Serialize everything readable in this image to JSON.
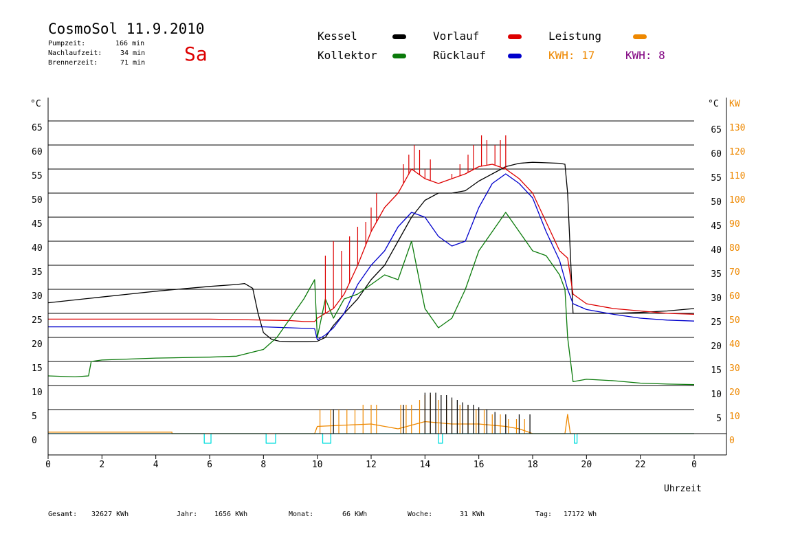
{
  "header": {
    "title": "CosmoSol 11.9.2010",
    "day": "Sa",
    "stats": [
      {
        "label": "Pumpzeit:",
        "value": "166 min"
      },
      {
        "label": "Nachlaufzeit:",
        "value": "34 min"
      },
      {
        "label": "Brennerzeit:",
        "value": "71 min"
      }
    ]
  },
  "legend": {
    "kessel": "Kessel",
    "kollektor": "Kollektor",
    "vorlauf": "Vorlauf",
    "ruecklauf": "Rücklauf",
    "leistung": "Leistung",
    "kwh_orange": "KWH: 17",
    "kwh_purple": "KWH: 8"
  },
  "colors": {
    "kessel": "#000000",
    "kollektor": "#0a7a0a",
    "vorlauf": "#dd0000",
    "ruecklauf": "#0000cc",
    "leistung": "#ee8800",
    "purple": "#800080",
    "pump": "#00dddd"
  },
  "totals": [
    {
      "label": "Gesamt:",
      "value": "32627 KWh"
    },
    {
      "label": "Jahr:",
      "value": "1656 KWh"
    },
    {
      "label": "Monat:",
      "value": "66 KWh"
    },
    {
      "label": "Woche:",
      "value": "31 KWh"
    },
    {
      "label": "Tag:",
      "value": "17172 Wh"
    }
  ],
  "chart_data": {
    "type": "line",
    "xlabel": "Uhrzeit",
    "xticks": [
      "0",
      "2",
      "4",
      "6",
      "8",
      "10",
      "12",
      "14",
      "16",
      "18",
      "20",
      "22",
      "0"
    ],
    "xlim": [
      0,
      24
    ],
    "yleft_unit": "°C",
    "yright_unit": "°C",
    "ypower_unit": "KW",
    "ylim": [
      0,
      70
    ],
    "yleft_ticks": [
      "0",
      "5",
      "10",
      "15",
      "20",
      "25",
      "30",
      "35",
      "40",
      "45",
      "50",
      "55",
      "60",
      "65"
    ],
    "yright_ticks": [
      "5",
      "10",
      "15",
      "20",
      "25",
      "30",
      "35",
      "40",
      "45",
      "50",
      "55",
      "60",
      "65"
    ],
    "ypower_ticks": [
      "0",
      "10",
      "20",
      "30",
      "40",
      "50",
      "60",
      "70",
      "80",
      "90",
      "100",
      "110",
      "120",
      "130"
    ],
    "grid": true,
    "series": [
      {
        "name": "Kessel",
        "color": "#000000",
        "x": [
          0,
          1,
          2,
          3,
          4,
          5,
          6,
          7,
          7.3,
          7.6,
          7.8,
          8,
          8.3,
          8.6,
          9,
          9.6,
          10,
          10.3,
          10.6,
          11,
          11.5,
          12,
          12.5,
          13,
          13.5,
          14,
          14.5,
          15,
          15.5,
          16,
          16.5,
          17,
          17.5,
          18,
          18.5,
          19,
          19.2,
          19.3,
          19.5,
          20,
          21,
          22,
          23,
          24
        ],
        "y": [
          27.2,
          27.8,
          28.4,
          29,
          29.6,
          30.1,
          30.6,
          31,
          31.2,
          30.2,
          25,
          21,
          19.6,
          19.2,
          19.1,
          19.1,
          19.2,
          20,
          22.5,
          25,
          28,
          32,
          35,
          40,
          45,
          48.5,
          50,
          50,
          50.5,
          52.5,
          54,
          55.5,
          56.2,
          56.4,
          56.3,
          56.2,
          56,
          50,
          25,
          25,
          25,
          25.2,
          25.5,
          26
        ]
      },
      {
        "name": "Vorlauf",
        "color": "#dd0000",
        "x": [
          0,
          2,
          4,
          6,
          8,
          9,
          9.5,
          9.9,
          10,
          10.3,
          10.6,
          11,
          11.5,
          12,
          12.5,
          13,
          13.5,
          14,
          14.5,
          15,
          15.5,
          16,
          16.5,
          17,
          17.5,
          18,
          18.5,
          19,
          19.3,
          19.5,
          20,
          21,
          22,
          23,
          24
        ],
        "y": [
          23.8,
          23.8,
          23.8,
          23.8,
          23.6,
          23.5,
          23.3,
          23.3,
          24,
          25,
          26,
          29,
          35,
          42,
          47,
          50,
          55,
          53,
          52,
          53,
          54,
          55.5,
          56,
          55,
          53,
          50,
          44,
          38,
          36.5,
          29,
          27,
          26,
          25.5,
          25,
          24.8
        ]
      },
      {
        "name": "Rücklauf",
        "color": "#0000cc",
        "x": [
          0,
          2,
          4,
          6,
          8,
          9,
          9.9,
          10,
          10.3,
          10.6,
          11,
          11.5,
          12,
          12.5,
          13,
          13.5,
          14,
          14.5,
          15,
          15.5,
          16,
          16.5,
          17,
          17.5,
          18,
          18.5,
          19,
          19.3,
          19.5,
          20,
          21,
          22,
          23,
          24
        ],
        "y": [
          22.2,
          22.2,
          22.2,
          22.2,
          22.2,
          22,
          21.8,
          19.5,
          20.5,
          22,
          25,
          31,
          35,
          38,
          43,
          46,
          45,
          41,
          39,
          40,
          47,
          52,
          54,
          52,
          49,
          42,
          36,
          30,
          27,
          25.8,
          24.8,
          24,
          23.6,
          23.4
        ]
      },
      {
        "name": "Kollektor",
        "color": "#0a7a0a",
        "x": [
          0,
          1,
          1.5,
          1.6,
          2,
          3,
          4,
          5,
          6,
          7,
          8,
          8.5,
          9,
          9.5,
          9.9,
          10,
          10.3,
          10.6,
          11,
          11.5,
          12,
          12.5,
          13,
          13.5,
          14,
          14.5,
          15,
          15.5,
          16,
          16.5,
          17,
          17.5,
          18,
          18.5,
          19,
          19.2,
          19.3,
          19.5,
          20,
          21,
          22,
          23,
          24
        ],
        "y": [
          12,
          11.8,
          12,
          15,
          15.3,
          15.5,
          15.7,
          15.8,
          15.9,
          16.1,
          17.5,
          20,
          24,
          28,
          32,
          20,
          28,
          24,
          28,
          29,
          31,
          33,
          32,
          40,
          26,
          22,
          24,
          30,
          38,
          42,
          46,
          42,
          38,
          37,
          33,
          30,
          20,
          10.8,
          11.3,
          11,
          10.5,
          10.3,
          10.2
        ]
      },
      {
        "name": "Leistung",
        "color": "#ee8800",
        "x": [
          0,
          4.6,
          4.6,
          9.9,
          10,
          12,
          13,
          14,
          15,
          16,
          17,
          17.5,
          18,
          19.2,
          19.3,
          19.4,
          24
        ],
        "y": [
          0.3,
          0.3,
          0,
          0,
          1.5,
          2,
          1,
          2.5,
          2,
          2,
          1.5,
          1,
          0,
          0,
          4,
          0,
          0
        ]
      },
      {
        "name": "Pumpe",
        "color": "#00dddd",
        "x": [
          0,
          5.8,
          5.8,
          6.05,
          6.05,
          8.1,
          8.1,
          8.45,
          8.45,
          10.2,
          10.2,
          10.5,
          10.5,
          14.5,
          14.5,
          14.65,
          14.65,
          19.55,
          19.55,
          19.65,
          19.65,
          24
        ],
        "y": [
          0,
          0,
          -2,
          -2,
          0,
          0,
          -2,
          -2,
          0,
          0,
          -2,
          -2,
          0,
          0,
          -2,
          -2,
          0,
          0,
          -2,
          -2,
          0,
          0
        ]
      }
    ],
    "spike_series": [
      {
        "name": "Vorlauf",
        "color": "#dd0000",
        "x": [
          10.3,
          10.6,
          10.9,
          11.2,
          11.5,
          11.8,
          12,
          12.2,
          13.2,
          13.4,
          13.6,
          13.8,
          14,
          14.2,
          15,
          15.3,
          15.6,
          15.8,
          16.1,
          16.3,
          16.6,
          16.8,
          17
        ],
        "y": [
          37,
          40,
          38,
          41,
          43,
          44,
          47,
          50,
          56,
          58,
          60,
          59,
          55,
          57,
          54,
          56,
          58,
          60,
          62,
          61,
          60,
          61,
          62
        ]
      },
      {
        "name": "Leistung",
        "color": "#ee8800",
        "x": [
          10.1,
          10.5,
          10.8,
          11.1,
          11.4,
          11.7,
          12,
          12.2,
          13.1,
          13.3,
          13.5,
          13.8,
          14,
          14.2,
          14.5,
          14.8,
          15,
          15.3,
          15.6,
          15.9,
          16.2,
          16.5,
          16.8,
          17.1,
          17.4,
          17.7
        ],
        "y": [
          5,
          5,
          5,
          5,
          5,
          6,
          6,
          6,
          6,
          6,
          6,
          7,
          8,
          8,
          7,
          7,
          7,
          6,
          6,
          5,
          5,
          4,
          4,
          3,
          3,
          3
        ]
      },
      {
        "name": "Kessel",
        "color": "#000000",
        "x": [
          10.6,
          13.2,
          14,
          14.2,
          14.4,
          14.6,
          14.8,
          15,
          15.2,
          15.4,
          15.6,
          15.8,
          16,
          16.3,
          16.6,
          17,
          17.5,
          17.9
        ],
        "y": [
          5,
          6,
          8.5,
          8.5,
          8.5,
          8,
          8,
          7.5,
          7,
          6.5,
          6,
          6,
          5.5,
          5,
          4.5,
          4,
          4,
          4
        ]
      }
    ]
  }
}
